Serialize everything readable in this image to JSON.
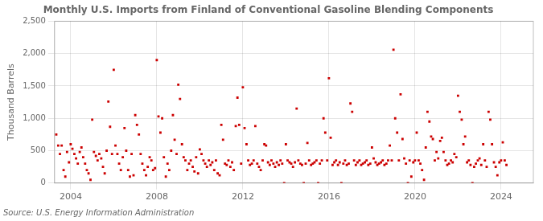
{
  "chart_data": {
    "type": "scatter",
    "title": "Monthly U.S. Imports from Finland of Conventional Gasoline Blending Components",
    "y_label": "Thousand Barrels",
    "annotations": [
      "Source: U.S. Energy Information Administration"
    ],
    "color": "#cc0000",
    "marker": "square",
    "grid": true,
    "xlim": [
      2003.25,
      2025.5
    ],
    "xticks": [
      2004,
      2008,
      2012,
      2016,
      2020,
      2024
    ],
    "ylim": [
      0,
      2500
    ],
    "yticks": [
      0,
      500,
      {
        "value": 1000,
        "label": "1,000"
      },
      {
        "value": 1500,
        "label": "1,500"
      },
      {
        "value": 2000,
        "label": "2,000"
      },
      {
        "value": 2500,
        "label": "2,500"
      }
    ],
    "x": [
      2003.33,
      2003.42,
      2003.5,
      2003.58,
      2003.67,
      2003.75,
      2003.83,
      2003.92,
      2004.0,
      2004.08,
      2004.17,
      2004.25,
      2004.33,
      2004.42,
      2004.5,
      2004.58,
      2004.67,
      2004.75,
      2004.83,
      2004.92,
      2005.0,
      2005.08,
      2005.17,
      2005.25,
      2005.33,
      2005.42,
      2005.5,
      2005.58,
      2005.67,
      2005.75,
      2005.83,
      2005.92,
      2006.0,
      2006.08,
      2006.17,
      2006.25,
      2006.33,
      2006.42,
      2006.5,
      2006.58,
      2006.67,
      2006.75,
      2006.83,
      2006.92,
      2007.0,
      2007.08,
      2007.17,
      2007.25,
      2007.33,
      2007.42,
      2007.5,
      2007.58,
      2007.67,
      2007.75,
      2007.83,
      2007.92,
      2008.0,
      2008.08,
      2008.17,
      2008.25,
      2008.33,
      2008.42,
      2008.5,
      2008.58,
      2008.67,
      2008.75,
      2008.83,
      2008.92,
      2009.0,
      2009.08,
      2009.17,
      2009.25,
      2009.33,
      2009.42,
      2009.5,
      2009.58,
      2009.67,
      2009.75,
      2009.83,
      2009.92,
      2010.0,
      2010.08,
      2010.17,
      2010.25,
      2010.33,
      2010.42,
      2010.5,
      2010.58,
      2010.67,
      2010.75,
      2010.83,
      2010.92,
      2011.0,
      2011.08,
      2011.17,
      2011.25,
      2011.33,
      2011.42,
      2011.5,
      2011.58,
      2011.67,
      2011.75,
      2011.83,
      2011.92,
      2012.0,
      2012.08,
      2012.17,
      2012.25,
      2012.33,
      2012.42,
      2012.5,
      2012.58,
      2012.67,
      2012.75,
      2012.83,
      2012.92,
      2013.0,
      2013.08,
      2013.17,
      2013.25,
      2013.33,
      2013.42,
      2013.5,
      2013.58,
      2013.67,
      2013.75,
      2013.83,
      2013.92,
      2014.0,
      2014.08,
      2014.17,
      2014.25,
      2014.33,
      2014.42,
      2014.5,
      2014.58,
      2014.67,
      2014.75,
      2014.83,
      2014.92,
      2015.0,
      2015.08,
      2015.17,
      2015.25,
      2015.33,
      2015.42,
      2015.5,
      2015.58,
      2015.67,
      2015.75,
      2015.83,
      2015.92,
      2016.0,
      2016.08,
      2016.17,
      2016.25,
      2016.33,
      2016.42,
      2016.5,
      2016.58,
      2016.67,
      2016.75,
      2016.83,
      2016.92,
      2017.0,
      2017.08,
      2017.17,
      2017.25,
      2017.33,
      2017.42,
      2017.5,
      2017.58,
      2017.67,
      2017.75,
      2017.83,
      2017.92,
      2018.0,
      2018.08,
      2018.17,
      2018.25,
      2018.33,
      2018.42,
      2018.5,
      2018.58,
      2018.67,
      2018.75,
      2018.83,
      2018.92,
      2019.0,
      2019.08,
      2019.17,
      2019.25,
      2019.33,
      2019.42,
      2019.5,
      2019.58,
      2019.67,
      2019.75,
      2019.83,
      2019.92,
      2020.0,
      2020.08,
      2020.17,
      2020.25,
      2020.33,
      2020.42,
      2020.5,
      2020.58,
      2020.67,
      2020.75,
      2020.83,
      2020.92,
      2021.0,
      2021.08,
      2021.17,
      2021.25,
      2021.33,
      2021.42,
      2021.5,
      2021.58,
      2021.67,
      2021.75,
      2021.83,
      2021.92,
      2022.0,
      2022.08,
      2022.17,
      2022.25,
      2022.33,
      2022.42,
      2022.5,
      2022.58,
      2022.67,
      2022.75,
      2022.83,
      2022.92,
      2023.0,
      2023.08,
      2023.17,
      2023.25,
      2023.33,
      2023.42,
      2023.5,
      2023.58,
      2023.67,
      2023.75,
      2023.83,
      2023.92,
      2024.0,
      2024.08,
      2024.17,
      2024.25
    ],
    "values": [
      750,
      580,
      450,
      580,
      200,
      100,
      480,
      320,
      600,
      530,
      450,
      380,
      300,
      480,
      550,
      400,
      300,
      200,
      150,
      50,
      980,
      480,
      420,
      350,
      450,
      380,
      250,
      150,
      500,
      1260,
      870,
      450,
      1750,
      580,
      450,
      300,
      200,
      400,
      850,
      500,
      200,
      100,
      450,
      120,
      1050,
      900,
      750,
      450,
      300,
      200,
      120,
      250,
      400,
      350,
      200,
      230,
      1900,
      1030,
      780,
      1000,
      400,
      100,
      300,
      200,
      500,
      1050,
      670,
      450,
      1520,
      1300,
      600,
      400,
      350,
      200,
      300,
      350,
      250,
      180,
      400,
      150,
      520,
      450,
      350,
      300,
      250,
      350,
      280,
      320,
      200,
      350,
      150,
      120,
      900,
      670,
      300,
      280,
      350,
      250,
      320,
      200,
      880,
      1320,
      900,
      300,
      1480,
      850,
      600,
      350,
      280,
      300,
      350,
      880,
      300,
      250,
      200,
      350,
      600,
      580,
      320,
      280,
      350,
      300,
      250,
      320,
      280,
      350,
      300,
      0,
      600,
      350,
      320,
      300,
      250,
      320,
      1150,
      350,
      300,
      280,
      0,
      300,
      620,
      350,
      280,
      300,
      320,
      350,
      0,
      300,
      350,
      1000,
      780,
      350,
      1620,
      700,
      280,
      320,
      350,
      280,
      320,
      0,
      300,
      350,
      280,
      300,
      1230,
      1100,
      350,
      280,
      320,
      350,
      280,
      300,
      320,
      350,
      280,
      300,
      550,
      380,
      320,
      280,
      300,
      320,
      350,
      280,
      300,
      350,
      580,
      350,
      2060,
      1000,
      780,
      350,
      1370,
      680,
      380,
      300,
      0,
      350,
      100,
      320,
      350,
      780,
      350,
      300,
      200,
      50,
      550,
      1100,
      950,
      720,
      680,
      350,
      480,
      380,
      650,
      700,
      480,
      350,
      280,
      300,
      350,
      320,
      450,
      400,
      1350,
      1100,
      980,
      600,
      720,
      320,
      350,
      280,
      0,
      250,
      300,
      350,
      380,
      280,
      600,
      350,
      250,
      1100,
      980,
      600,
      320,
      250,
      120,
      320,
      350,
      630,
      350,
      280
    ]
  }
}
